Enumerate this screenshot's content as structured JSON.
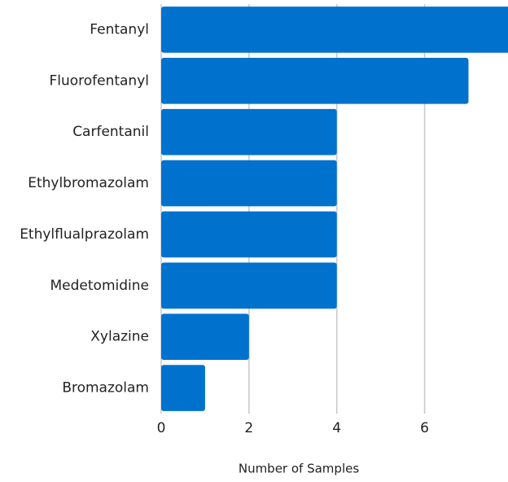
{
  "chart_data": {
    "type": "bar",
    "orientation": "horizontal",
    "categories": [
      "Fentanyl",
      "Fluorofentanyl",
      "Carfentanil",
      "Ethylbromazolam",
      "Ethylflualprazolam",
      "Medetomidine",
      "Xylazine",
      "Bromazolam"
    ],
    "values": [
      8,
      7,
      4,
      4,
      4,
      4,
      2,
      1
    ],
    "color": "#0072ce",
    "xlabel": "Number of Samples",
    "xlim": [
      0,
      7.9
    ],
    "xticks": [
      0,
      2,
      4,
      6
    ],
    "grid": true
  }
}
